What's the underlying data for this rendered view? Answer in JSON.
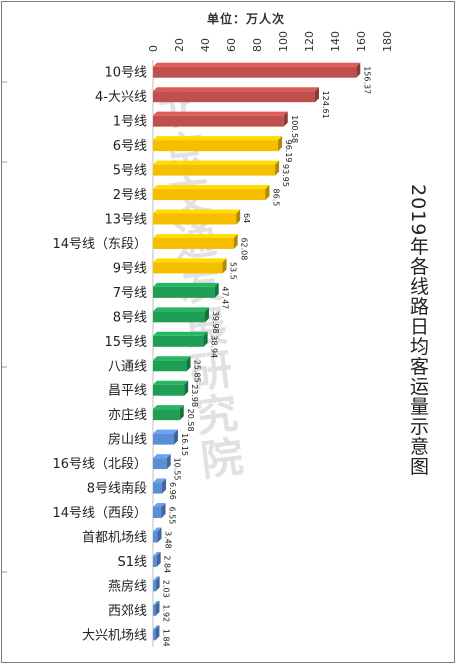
{
  "unit_label": "单位：万人次",
  "title": "2019年各线路日均客运量示意图",
  "watermark": "北京交通发展研究院",
  "colors": {
    "red": "#c0504d",
    "yellow": "#f5bf00",
    "green": "#1f9e55",
    "blue": "#5a8fd6"
  },
  "chart_data": {
    "type": "bar",
    "orientation": "horizontal",
    "x_axis_position": "top",
    "xlim": [
      0,
      180
    ],
    "xticks": [
      0,
      20,
      40,
      60,
      80,
      100,
      120,
      140,
      160,
      180
    ],
    "title": "2019年各线路日均客运量示意图",
    "xlabel": "单位：万人次",
    "categories": [
      "10号线",
      "4-大兴线",
      "1号线",
      "6号线",
      "5号线",
      "2号线",
      "13号线",
      "14号线（东段）",
      "9号线",
      "7号线",
      "8号线",
      "15号线",
      "八通线",
      "昌平线",
      "亦庄线",
      "房山线",
      "16号线（北段）",
      "8号线南段",
      "14号线（西段）",
      "首都机场线",
      "S1线",
      "燕房线",
      "西郊线",
      "大兴机场线"
    ],
    "values": [
      156.37,
      124.61,
      100.58,
      96.19,
      93.95,
      86.5,
      64,
      62.08,
      53.5,
      47.47,
      39.98,
      38.94,
      25.85,
      23.98,
      20.58,
      16.15,
      10.55,
      6.96,
      6.55,
      3.48,
      2.84,
      2.03,
      1.92,
      1.84
    ],
    "value_labels": [
      "156.37",
      "124.61",
      "100.58",
      "96.19",
      "93.95",
      "86.5",
      "64",
      "62.08",
      "53.5",
      "47.47",
      "39.98",
      "38.94",
      "25.85",
      "23.98",
      "20.58",
      "16.15",
      "10.55",
      "6.96",
      "6.55",
      "3.48",
      "2.84",
      "2.03",
      "1.92",
      "1.84"
    ],
    "bar_colors": [
      "red",
      "red",
      "red",
      "yellow",
      "yellow",
      "yellow",
      "yellow",
      "yellow",
      "yellow",
      "green",
      "green",
      "green",
      "green",
      "green",
      "green",
      "blue",
      "blue",
      "blue",
      "blue",
      "blue",
      "blue",
      "blue",
      "blue",
      "blue"
    ],
    "grid": false,
    "legend": "none"
  }
}
